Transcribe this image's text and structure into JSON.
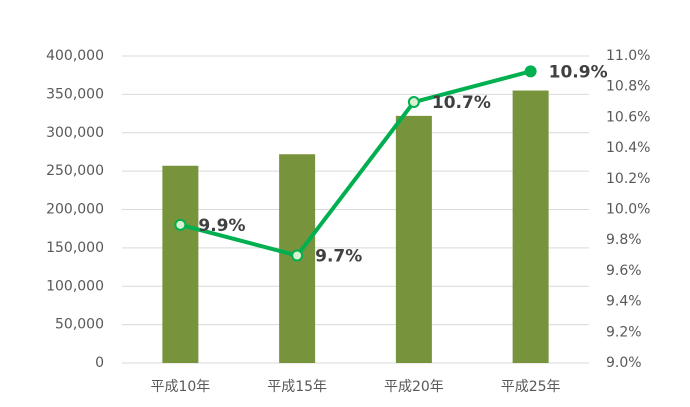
{
  "chart_data": {
    "type": "bar",
    "categories": [
      "平成10年",
      "平成15年",
      "平成20年",
      "平成25年"
    ],
    "series": [
      {
        "color": "#77933c",
        "values": [
          257000,
          272000,
          322000,
          355000
        ]
      },
      {
        "type": "line",
        "axis": "y2",
        "color": "#00b050",
        "values": [
          9.9,
          9.7,
          10.7,
          10.9
        ],
        "value_labels": [
          "9.9%",
          "9.7%",
          "10.7%",
          "10.9%"
        ]
      }
    ],
    "ylim": [
      0,
      400000
    ],
    "yticks": [
      0,
      {
        "value": 50000,
        "label": "50,000"
      },
      {
        "value": 100000,
        "label": "100,000"
      },
      {
        "value": 150000,
        "label": "150,000"
      },
      {
        "value": 200000,
        "label": "200,000"
      },
      {
        "value": 250000,
        "label": "250,000"
      },
      {
        "value": 300000,
        "label": "300,000"
      },
      {
        "value": 350000,
        "label": "350,000"
      },
      {
        "value": 400000,
        "label": "400,000"
      }
    ],
    "y2lim": [
      9.0,
      11.0
    ],
    "y2ticks": [
      {
        "value": 9.0,
        "label": "9.0%"
      },
      {
        "value": 9.2,
        "label": "9.2%"
      },
      {
        "value": 9.4,
        "label": "9.4%"
      },
      {
        "value": 9.6,
        "label": "9.6%"
      },
      {
        "value": 9.8,
        "label": "9.8%"
      },
      {
        "value": 10.0,
        "label": "10.0%"
      },
      {
        "value": 10.2,
        "label": "10.2%"
      },
      {
        "value": 10.4,
        "label": "10.4%"
      },
      {
        "value": 10.6,
        "label": "10.6%"
      },
      {
        "value": 10.8,
        "label": "10.8%"
      },
      {
        "value": 11.0,
        "label": "11.0%"
      }
    ],
    "grid": true
  }
}
